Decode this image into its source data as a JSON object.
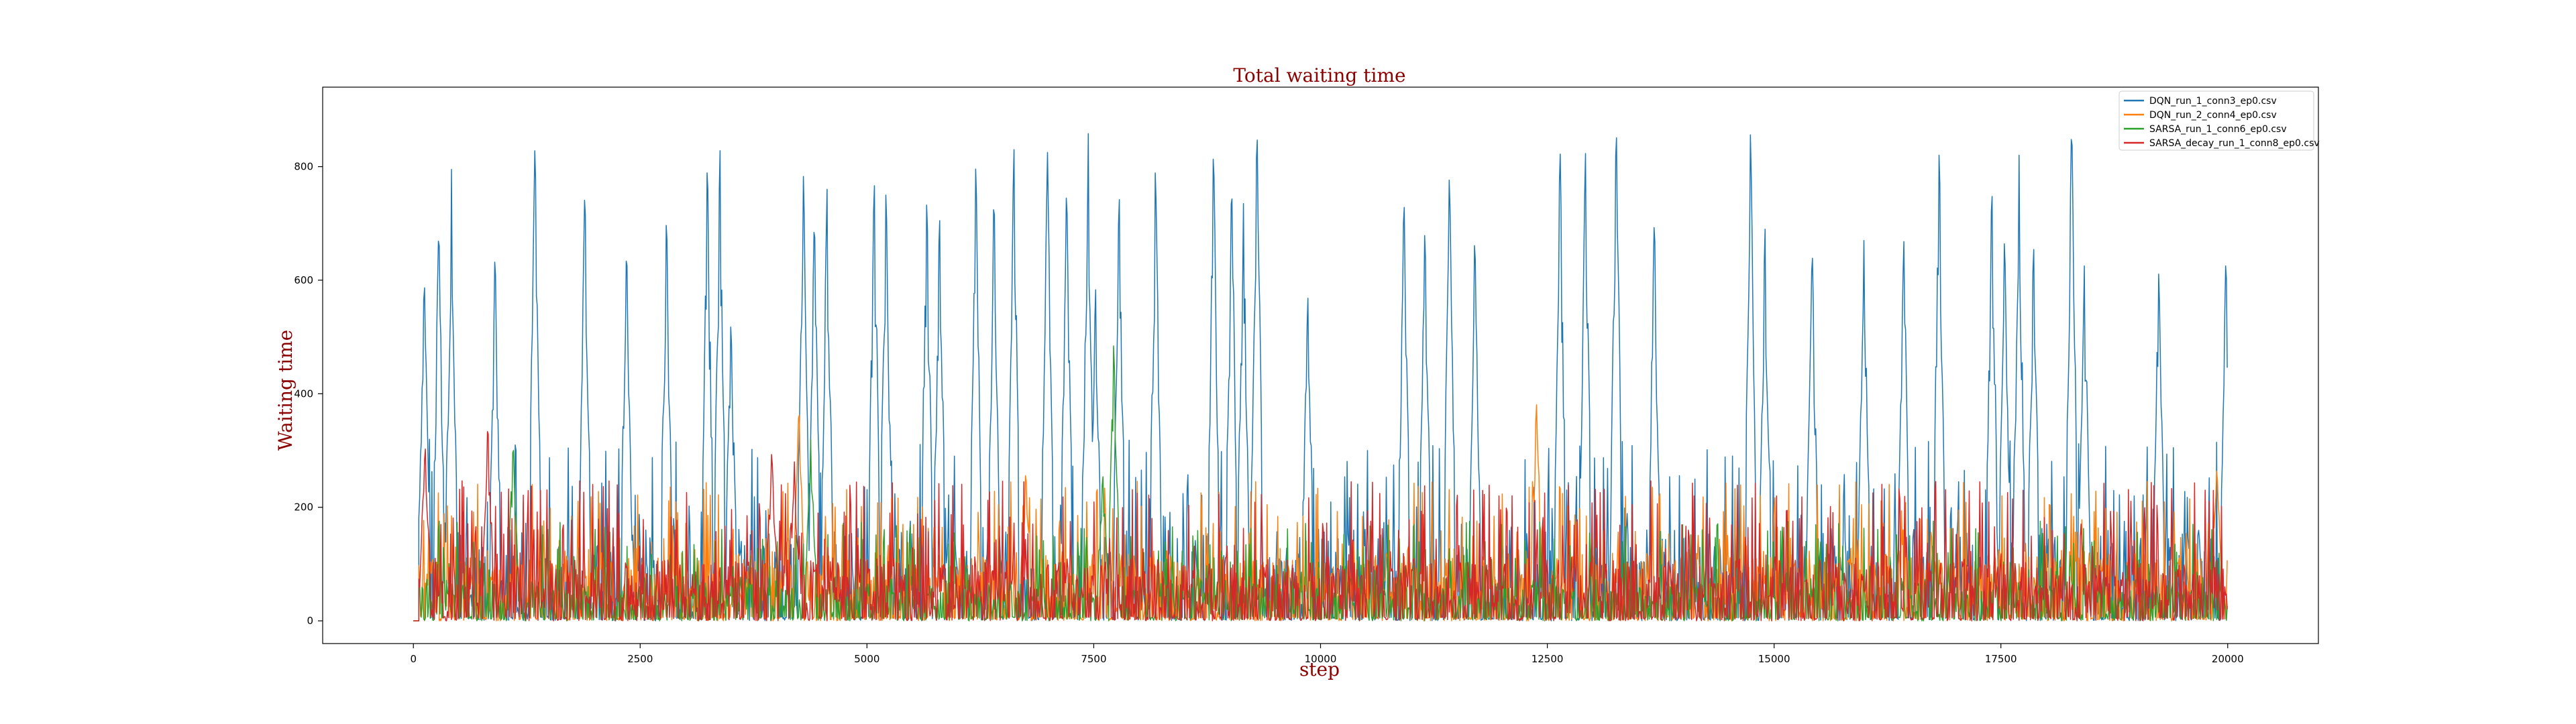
{
  "chart_data": {
    "type": "line",
    "title": "Total waiting time",
    "xlabel": "step",
    "ylabel": "Waiting time",
    "xlim": [
      -1000,
      21000
    ],
    "ylim": [
      -40,
      940
    ],
    "x_ticks": [
      0,
      2500,
      5000,
      7500,
      10000,
      12500,
      15000,
      17500,
      20000
    ],
    "x_tick_labels": [
      "0",
      "2500",
      "5000",
      "7500",
      "10000",
      "12500",
      "15000",
      "17500",
      "20000"
    ],
    "y_ticks": [
      0,
      200,
      400,
      600,
      800
    ],
    "y_tick_labels": [
      "0",
      "200",
      "400",
      "600",
      "800"
    ],
    "grid": false,
    "legend_position": "top-right",
    "x_start": 0,
    "x_end": 20000,
    "series": [
      {
        "name": "DQN_run_1_conn3_ep0.csv",
        "color": "#1f77b4",
        "base_level": 150,
        "noise_level": 230,
        "peaks": [
          [
            120,
            608
          ],
          [
            280,
            702
          ],
          [
            420,
            795
          ],
          [
            900,
            655
          ],
          [
            1340,
            848
          ],
          [
            1890,
            768
          ],
          [
            2350,
            665
          ],
          [
            2790,
            722
          ],
          [
            3240,
            818
          ],
          [
            3380,
            838
          ],
          [
            3500,
            530
          ],
          [
            4300,
            792
          ],
          [
            4420,
            718
          ],
          [
            4560,
            760
          ],
          [
            5080,
            785
          ],
          [
            5210,
            768
          ],
          [
            5660,
            750
          ],
          [
            5800,
            722
          ],
          [
            6200,
            815
          ],
          [
            6400,
            760
          ],
          [
            6620,
            840
          ],
          [
            6990,
            825
          ],
          [
            7200,
            772
          ],
          [
            7440,
            858
          ],
          [
            7520,
            590
          ],
          [
            7780,
            760
          ],
          [
            8180,
            808
          ],
          [
            8820,
            843
          ],
          [
            9020,
            780
          ],
          [
            9150,
            735
          ],
          [
            9300,
            878
          ],
          [
            9860,
            575
          ],
          [
            10920,
            755
          ],
          [
            11150,
            695
          ],
          [
            11420,
            795
          ],
          [
            11700,
            685
          ],
          [
            12640,
            842
          ],
          [
            12920,
            833
          ],
          [
            13260,
            882
          ],
          [
            13680,
            718
          ],
          [
            14740,
            866
          ],
          [
            14900,
            698
          ],
          [
            15420,
            662
          ],
          [
            15990,
            670
          ],
          [
            16430,
            676
          ],
          [
            16820,
            840
          ],
          [
            17400,
            775
          ],
          [
            17540,
            680
          ],
          [
            17700,
            820
          ],
          [
            17860,
            670
          ],
          [
            18280,
            890
          ],
          [
            18420,
            625
          ],
          [
            19240,
            618
          ],
          [
            19980,
            648
          ]
        ]
      },
      {
        "name": "DQN_run_2_conn4_ep0.csv",
        "color": "#ff7f0e",
        "base_level": 110,
        "noise_level": 180,
        "peaks": [
          [
            4250,
            380
          ],
          [
            6750,
            265
          ],
          [
            12380,
            385
          ],
          [
            19880,
            270
          ]
        ]
      },
      {
        "name": "SARSA_run_1_conn6_ep0.csv",
        "color": "#2ca02c",
        "base_level": 60,
        "noise_level": 140,
        "peaks": [
          [
            1100,
            315
          ],
          [
            4380,
            320
          ],
          [
            7720,
            490
          ],
          [
            7600,
            260
          ]
        ]
      },
      {
        "name": "SARSA_decay_run_1_conn8_ep0.csv",
        "color": "#d62728",
        "base_level": 95,
        "noise_level": 190,
        "peaks": [
          [
            130,
            310
          ],
          [
            820,
            350
          ],
          [
            3950,
            300
          ],
          [
            4200,
            280
          ]
        ]
      }
    ]
  }
}
